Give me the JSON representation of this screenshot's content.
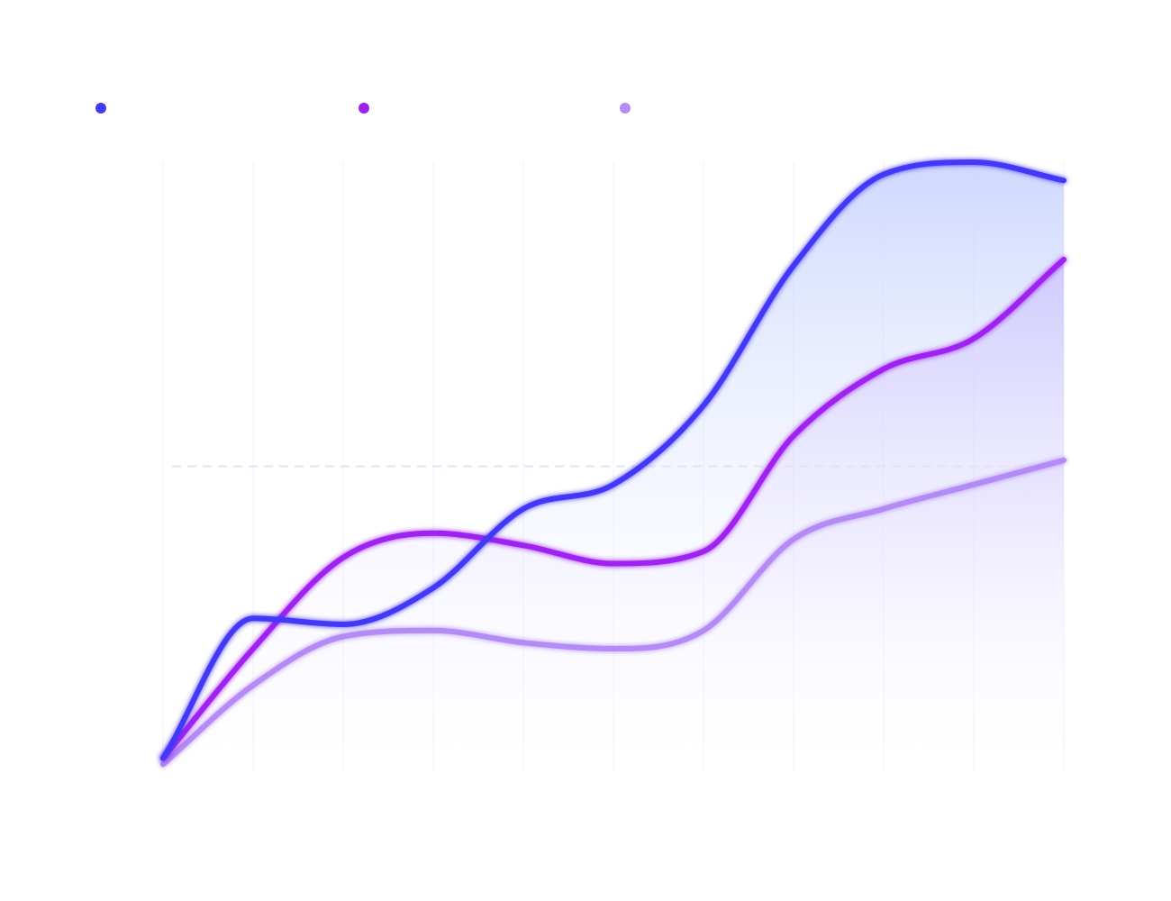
{
  "chart_data": {
    "type": "line",
    "title": "",
    "xlabel": "",
    "ylabel": "",
    "categories": [
      "",
      "",
      "",
      "",
      "",
      "",
      "",
      "",
      "",
      "",
      ""
    ],
    "x": [
      0,
      1,
      2,
      3,
      4,
      5,
      6,
      7,
      8,
      9,
      10
    ],
    "ylim": [
      0,
      100
    ],
    "grid": true,
    "reference_line": 50,
    "legend_position": "top-left",
    "series": [
      {
        "name": "",
        "color": "#4338f5",
        "fill": "#c7d2fe",
        "values": [
          2,
          25,
          24,
          30,
          43,
          47,
          60,
          83,
          98,
          100,
          97
        ]
      },
      {
        "name": "",
        "color": "#a020f0",
        "fill": "#d8c7fb",
        "values": [
          2,
          20,
          35,
          39,
          37,
          34,
          36,
          55,
          66,
          71,
          84
        ]
      },
      {
        "name": "",
        "color": "#b48af5",
        "fill": "#ece6fd",
        "values": [
          1,
          14,
          22,
          23,
          21,
          20,
          23,
          38,
          43,
          47,
          51
        ]
      }
    ]
  }
}
